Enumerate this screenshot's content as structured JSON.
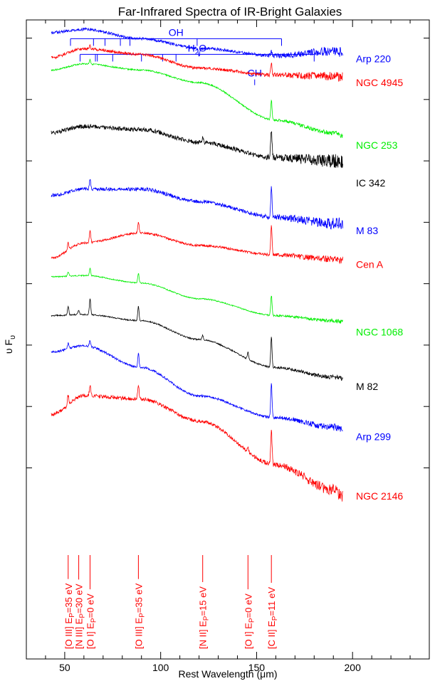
{
  "chart_data": {
    "type": "line",
    "title": "Far-Infrared Spectra of IR-Bright Galaxies",
    "xlabel": "Rest Wavelength (μm)",
    "ylabel": "υ F",
    "ylabel_sub": "υ",
    "xlim": [
      30,
      240
    ],
    "xticks": [
      50,
      100,
      150,
      200
    ],
    "colors": {
      "blue": "#0000ff",
      "red": "#ff0000",
      "green": "#00ee00",
      "black": "#000000"
    },
    "series": [
      {
        "name": "Arp 220",
        "color": "#0000ff",
        "anchors": [
          [
            43,
            0.92
          ],
          [
            60,
            0.915
          ],
          [
            90,
            0.93
          ],
          [
            120,
            0.945
          ],
          [
            160,
            0.957
          ],
          [
            190,
            0.95
          ],
          [
            195,
            0.952
          ]
        ],
        "lines": [
          [
            120,
            -12
          ],
          [
            157.7,
            6
          ]
        ],
        "noise": 2.0,
        "seed": 1
      },
      {
        "name": "NGC 4945",
        "color": "#ff0000",
        "anchors": [
          [
            43,
            0.96
          ],
          [
            60,
            0.946
          ],
          [
            90,
            0.955
          ],
          [
            120,
            0.977
          ],
          [
            160,
            0.988
          ],
          [
            190,
            0.99
          ],
          [
            195,
            0.992
          ]
        ],
        "lines": [
          [
            63.2,
            4
          ],
          [
            157.7,
            16
          ]
        ],
        "noise": 2.0,
        "seed": 2
      },
      {
        "name": "NGC 253",
        "color": "#00ee00",
        "anchors": [
          [
            43,
            0.98
          ],
          [
            60,
            0.97
          ],
          [
            90,
            0.98
          ],
          [
            120,
            1.0
          ],
          [
            160,
            1.06
          ],
          [
            190,
            1.08
          ],
          [
            195,
            1.085
          ]
        ],
        "lines": [
          [
            63.2,
            6
          ],
          [
            157.7,
            28
          ]
        ],
        "noise": 1.0,
        "seed": 3
      },
      {
        "name": "IC 342",
        "color": "#000000",
        "anchors": [
          [
            43,
            1.08
          ],
          [
            60,
            1.07
          ],
          [
            90,
            1.075
          ],
          [
            120,
            1.095
          ],
          [
            160,
            1.12
          ],
          [
            190,
            1.125
          ],
          [
            195,
            1.128
          ]
        ],
        "lines": [
          [
            121.9,
            6
          ],
          [
            157.7,
            40
          ]
        ],
        "noise": 3.0,
        "seed": 4
      },
      {
        "name": "M 83",
        "color": "#0000ff",
        "anchors": [
          [
            43,
            1.18
          ],
          [
            60,
            1.17
          ],
          [
            90,
            1.17
          ],
          [
            120,
            1.19
          ],
          [
            160,
            1.215
          ],
          [
            190,
            1.225
          ],
          [
            195,
            1.226
          ]
        ],
        "lines": [
          [
            63.2,
            14
          ],
          [
            157.7,
            42
          ]
        ],
        "noise": 2.5,
        "seed": 5
      },
      {
        "name": "Cen A",
        "color": "#ff0000",
        "anchors": [
          [
            43,
            1.28
          ],
          [
            60,
            1.256
          ],
          [
            90,
            1.24
          ],
          [
            120,
            1.26
          ],
          [
            160,
            1.275
          ],
          [
            190,
            1.282
          ],
          [
            195,
            1.283
          ]
        ],
        "lines": [
          [
            51.8,
            10
          ],
          [
            63.2,
            18
          ],
          [
            88.4,
            16
          ],
          [
            157.7,
            42
          ]
        ],
        "noise": 1.5,
        "seed": 6
      },
      {
        "name": "NGC 1068",
        "color": "#00ee00",
        "anchors": [
          [
            43,
            1.31
          ],
          [
            60,
            1.308
          ],
          [
            90,
            1.32
          ],
          [
            120,
            1.345
          ],
          [
            160,
            1.372
          ],
          [
            190,
            1.38
          ],
          [
            195,
            1.382
          ]
        ],
        "lines": [
          [
            51.8,
            6
          ],
          [
            63.2,
            10
          ],
          [
            88.4,
            14
          ],
          [
            157.7,
            28
          ]
        ],
        "noise": 0.8,
        "seed": 7
      },
      {
        "name": "M 82",
        "color": "#000000",
        "anchors": [
          [
            43,
            1.372
          ],
          [
            60,
            1.37
          ],
          [
            90,
            1.38
          ],
          [
            120,
            1.41
          ],
          [
            160,
            1.455
          ],
          [
            190,
            1.47
          ],
          [
            195,
            1.472
          ]
        ],
        "lines": [
          [
            51.8,
            12
          ],
          [
            57.3,
            6
          ],
          [
            63.2,
            22
          ],
          [
            88.4,
            20
          ],
          [
            121.9,
            6
          ],
          [
            145.5,
            10
          ],
          [
            157.7,
            42
          ]
        ],
        "noise": 1.0,
        "seed": 8
      },
      {
        "name": "Arp 299",
        "color": "#0000ff",
        "anchors": [
          [
            43,
            1.43
          ],
          [
            60,
            1.42
          ],
          [
            90,
            1.455
          ],
          [
            120,
            1.5
          ],
          [
            160,
            1.535
          ],
          [
            190,
            1.55
          ],
          [
            195,
            1.552
          ]
        ],
        "lines": [
          [
            51.8,
            8
          ],
          [
            63.2,
            8
          ],
          [
            88.4,
            20
          ],
          [
            157.7,
            48
          ]
        ],
        "noise": 1.5,
        "seed": 9
      },
      {
        "name": "NGC 2146",
        "color": "#ff0000",
        "anchors": [
          [
            43,
            1.53
          ],
          [
            60,
            1.5
          ],
          [
            90,
            1.505
          ],
          [
            120,
            1.54
          ],
          [
            160,
            1.61
          ],
          [
            190,
            1.65
          ],
          [
            195,
            1.66
          ]
        ],
        "lines": [
          [
            51.8,
            14
          ],
          [
            63.2,
            14
          ],
          [
            88.4,
            20
          ],
          [
            145.5,
            6
          ],
          [
            157.7,
            50
          ]
        ],
        "noise": 2.5,
        "seed": 10
      }
    ],
    "series_labels": [
      {
        "name": "Arp 220",
        "color": "#0000ff",
        "y": 0.962
      },
      {
        "name": "NGC 4945",
        "color": "#ff0000",
        "y": 1.0
      },
      {
        "name": "NGC 253",
        "color": "#00ee00",
        "y": 1.1
      },
      {
        "name": "IC 342",
        "color": "#000000",
        "y": 1.16
      },
      {
        "name": "M 83",
        "color": "#0000ff",
        "y": 1.236
      },
      {
        "name": "Cen A",
        "color": "#ff0000",
        "y": 1.29
      },
      {
        "name": "NGC 1068",
        "color": "#00ee00",
        "y": 1.398
      },
      {
        "name": "M 82",
        "color": "#000000",
        "y": 1.485
      },
      {
        "name": "Arp 299",
        "color": "#0000ff",
        "y": 1.565
      },
      {
        "name": "NGC 2146",
        "color": "#ff0000",
        "y": 1.66
      }
    ],
    "molecular_lines": [
      {
        "name": "OH",
        "level": 0.93,
        "ticks": [
          53,
          65,
          71,
          79,
          84,
          119,
          163
        ]
      },
      {
        "name": "H₂O",
        "name_base": "H",
        "name_sub": "2",
        "name_tail": "O",
        "level": 0.955,
        "ticks": [
          58,
          66,
          67,
          75,
          90,
          101,
          108,
          180
        ]
      },
      {
        "name": "CH",
        "level": 0.995,
        "ticks": [
          149
        ]
      }
    ],
    "atomic_lines": [
      {
        "species": "[O III]",
        "energy": "35 eV",
        "x": 51.8
      },
      {
        "species": "[N III]",
        "energy": "30 eV",
        "x": 57.3
      },
      {
        "species": "[O I]",
        "energy": "0 eV",
        "x": 63.2
      },
      {
        "species": "[O III]",
        "energy": "35 eV",
        "x": 88.4
      },
      {
        "species": "[N II]",
        "energy": "15 eV",
        "x": 121.9
      },
      {
        "species": "[O I]",
        "energy": "0 eV",
        "x": 145.5
      },
      {
        "species": "[C II]",
        "energy": "11 eV",
        "x": 157.7
      }
    ],
    "atomic_label_sub": "P",
    "y_axis": {
      "scale": "log",
      "tick_labels": false,
      "minor_ticks": false,
      "ylim": [
        0.9,
        1.92
      ],
      "major_ticks": [
        0.929,
        1.027,
        1.125,
        1.223,
        1.321,
        1.419,
        1.517,
        1.615
      ]
    }
  }
}
